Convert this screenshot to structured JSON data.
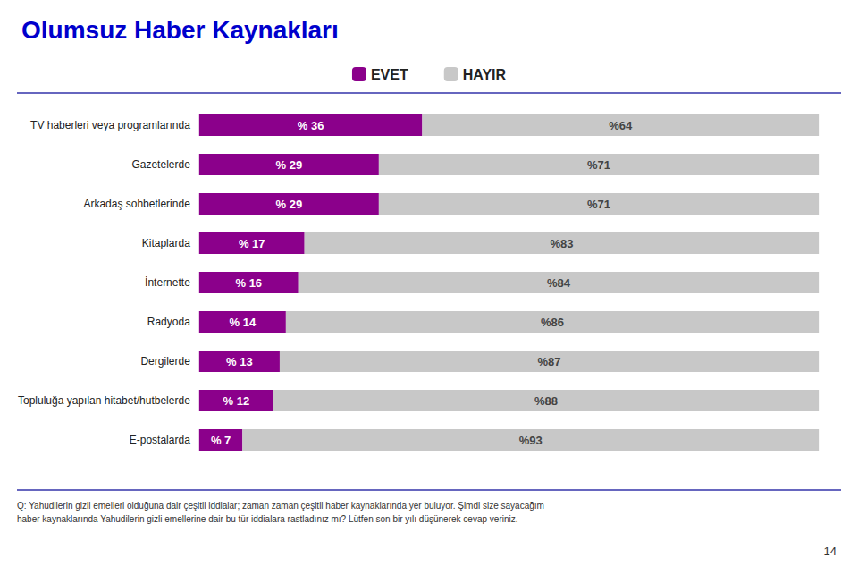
{
  "chart_data": {
    "type": "bar",
    "orientation": "horizontal",
    "stacked": true,
    "data_labels": true,
    "tick_labels": "y",
    "grid": false,
    "legend": "top",
    "title": "Olumsuz Haber Kaynakları",
    "categories": [
      "TV haberleri veya programlarında",
      "Gazetelerde",
      "Arkadaş sohbetlerinde",
      "Kitaplarda",
      "İnternette",
      "Radyoda",
      "Dergilerde",
      "Topluluğa yapılan hitabet/hutbelerde",
      "E-postalarda"
    ],
    "xlim": [
      0,
      102
    ],
    "series": [
      {
        "name": "EVET",
        "color": "#8B008B",
        "values": [
          36,
          29,
          29,
          17,
          16,
          14,
          13,
          12,
          7
        ],
        "value_labels": [
          "% 36",
          "% 29",
          "% 29",
          "% 17",
          "% 16",
          "% 14",
          "% 13",
          "% 12",
          "% 7"
        ]
      },
      {
        "name": "HAYIR",
        "color": "#C8C8C8",
        "values": [
          64,
          71,
          71,
          83,
          84,
          86,
          87,
          88,
          93
        ],
        "value_labels": [
          "%64",
          "%71",
          "%71",
          "%83",
          "%84",
          "%86",
          "%87",
          "%88",
          "%93"
        ]
      }
    ],
    "annotations": [
      "Q: Yahudilerin gizli emelleri olduğuna dair çeşitli iddialar; zaman zaman çeşitli haber kaynaklarında yer buluyor. Şimdi size sayacağım",
      "haber kaynaklarında Yahudilerin gizli emellerine dair bu tür iddialara rastladınız mı? Lütfen son bir yılı düşünerek cevap veriniz.",
      "14"
    ]
  }
}
